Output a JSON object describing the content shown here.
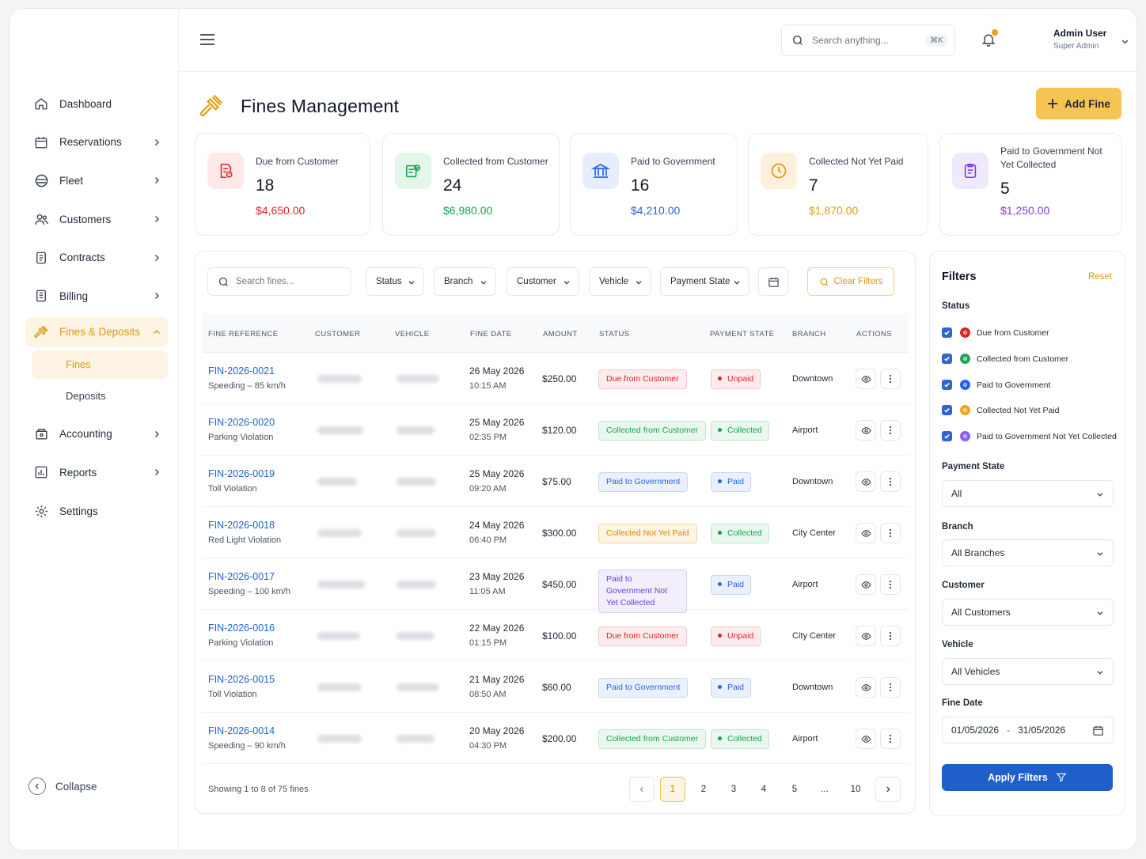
{
  "sidebar": {
    "items": [
      {
        "label": "Dashboard",
        "icon": "home-icon"
      },
      {
        "label": "Reservations",
        "icon": "calendar-icon"
      },
      {
        "label": "Fleet",
        "icon": "car-icon"
      },
      {
        "label": "Customers",
        "icon": "users-icon"
      },
      {
        "label": "Contracts",
        "icon": "document-icon"
      },
      {
        "label": "Billing",
        "icon": "receipt-icon"
      },
      {
        "label": "Fines & Deposits",
        "icon": "gavel-icon"
      },
      {
        "label": "Accounting",
        "icon": "wallet-icon"
      },
      {
        "label": "Reports",
        "icon": "chart-icon"
      },
      {
        "label": "Settings",
        "icon": "gear-icon"
      }
    ],
    "sub_items": [
      {
        "label": "Fines"
      },
      {
        "label": "Deposits"
      }
    ],
    "collapse_label": "Collapse"
  },
  "header": {
    "search_placeholder": "Search anything...",
    "search_shortcut": "⌘K",
    "user_name": "Admin User",
    "user_role": "Super Admin"
  },
  "page": {
    "title": "Fines Management",
    "add_button": "Add Fine"
  },
  "summary_cards": [
    {
      "label": "Due from Customer",
      "count": "18",
      "amount": "$4,650.00",
      "color": "#dc2626",
      "bg": "#fde8ea"
    },
    {
      "label": "Collected from Customer",
      "count": "24",
      "amount": "$6,980.00",
      "color": "#16a34a",
      "bg": "#e3f6ea"
    },
    {
      "label": "Paid to Government",
      "count": "16",
      "amount": "$4,210.00",
      "color": "#2563eb",
      "bg": "#e6eefb"
    },
    {
      "label": "Collected Not Yet Paid",
      "count": "7",
      "amount": "$1,870.00",
      "color": "#e39a0b",
      "bg": "#fdf1dc"
    },
    {
      "label": "Paid to Government Not Yet Collected",
      "count": "5",
      "amount": "$1,250.00",
      "color": "#7c3aed",
      "bg": "#eeeafb"
    }
  ],
  "table_filters": {
    "search_placeholder": "Search fines...",
    "status": "Status",
    "branch": "Branch",
    "customer": "Customer",
    "vehicle": "Vehicle",
    "payment_state": "Payment State",
    "clear": "Clear Filters"
  },
  "table": {
    "columns": [
      "FINE REFERENCE",
      "CUSTOMER",
      "VEHICLE",
      "FINE DATE",
      "AMOUNT",
      "STATUS",
      "PAYMENT STATE",
      "BRANCH",
      "ACTIONS"
    ],
    "rows": [
      {
        "ref": "FIN-2026-0021",
        "desc": "Speeding – 85 km/h",
        "date": "26 May 2026",
        "time": "10:15 AM",
        "amount": "$250.00",
        "status": "Due from Customer",
        "status_kind": "due",
        "payment": "Unpaid",
        "payment_kind": "unpaid",
        "branch": "Downtown"
      },
      {
        "ref": "FIN-2026-0020",
        "desc": "Parking Violation",
        "date": "25 May 2026",
        "time": "02:35 PM",
        "amount": "$120.00",
        "status": "Collected from Customer",
        "status_kind": "collected",
        "payment": "Collected",
        "payment_kind": "collected",
        "branch": "Airport"
      },
      {
        "ref": "FIN-2026-0019",
        "desc": "Toll Violation",
        "date": "25 May 2026",
        "time": "09:20 AM",
        "amount": "$75.00",
        "status": "Paid to Government",
        "status_kind": "paid",
        "payment": "Paid",
        "payment_kind": "paid",
        "branch": "Downtown"
      },
      {
        "ref": "FIN-2026-0018",
        "desc": "Red Light Violation",
        "date": "24 May 2026",
        "time": "06:40 PM",
        "amount": "$300.00",
        "status": "Collected Not Yet Paid",
        "status_kind": "cnyp",
        "payment": "Collected",
        "payment_kind": "collected",
        "branch": "City Center"
      },
      {
        "ref": "FIN-2026-0017",
        "desc": "Speeding – 100 km/h",
        "date": "23 May 2026",
        "time": "11:05 AM",
        "amount": "$450.00",
        "status": "Paid to Government Not Yet Collected",
        "status_kind": "pgnyc",
        "payment": "Paid",
        "payment_kind": "paid",
        "branch": "Airport"
      },
      {
        "ref": "FIN-2026-0016",
        "desc": "Parking Violation",
        "date": "22 May 2026",
        "time": "01:15 PM",
        "amount": "$100.00",
        "status": "Due from Customer",
        "status_kind": "due",
        "payment": "Unpaid",
        "payment_kind": "unpaid",
        "branch": "City Center"
      },
      {
        "ref": "FIN-2026-0015",
        "desc": "Toll Violation",
        "date": "21 May 2026",
        "time": "08:50 AM",
        "amount": "$60.00",
        "status": "Paid to Government",
        "status_kind": "paid",
        "payment": "Paid",
        "payment_kind": "paid",
        "branch": "Downtown"
      },
      {
        "ref": "FIN-2026-0014",
        "desc": "Speeding – 90 km/h",
        "date": "20 May 2026",
        "time": "04:30 PM",
        "amount": "$200.00",
        "status": "Collected from Customer",
        "status_kind": "collected",
        "payment": "Collected",
        "payment_kind": "collected",
        "branch": "Airport"
      }
    ],
    "showing": "Showing 1 to 8 of 75 fines",
    "pages": [
      "1",
      "2",
      "3",
      "4",
      "5",
      "...",
      "10"
    ]
  },
  "side_filters": {
    "title": "Filters",
    "reset": "Reset",
    "status_label": "Status",
    "statuses": [
      {
        "label": "Due from Customer",
        "color": "#dc2626"
      },
      {
        "label": "Collected from Customer",
        "color": "#22a35a"
      },
      {
        "label": "Paid to Government",
        "color": "#2563eb"
      },
      {
        "label": "Collected Not Yet Paid",
        "color": "#f0a520"
      },
      {
        "label": "Paid to Government Not Yet Collected",
        "color": "#8b5cf6"
      }
    ],
    "payment_state_label": "Payment State",
    "payment_state_value": "All",
    "branch_label": "Branch",
    "branch_value": "All Branches",
    "customer_label": "Customer",
    "customer_value": "All Customers",
    "vehicle_label": "Vehicle",
    "vehicle_value": "All Vehicles",
    "fine_date_label": "Fine Date",
    "date_from": "01/05/2026",
    "date_sep": "-",
    "date_to": "31/05/2026",
    "apply": "Apply Filters"
  }
}
